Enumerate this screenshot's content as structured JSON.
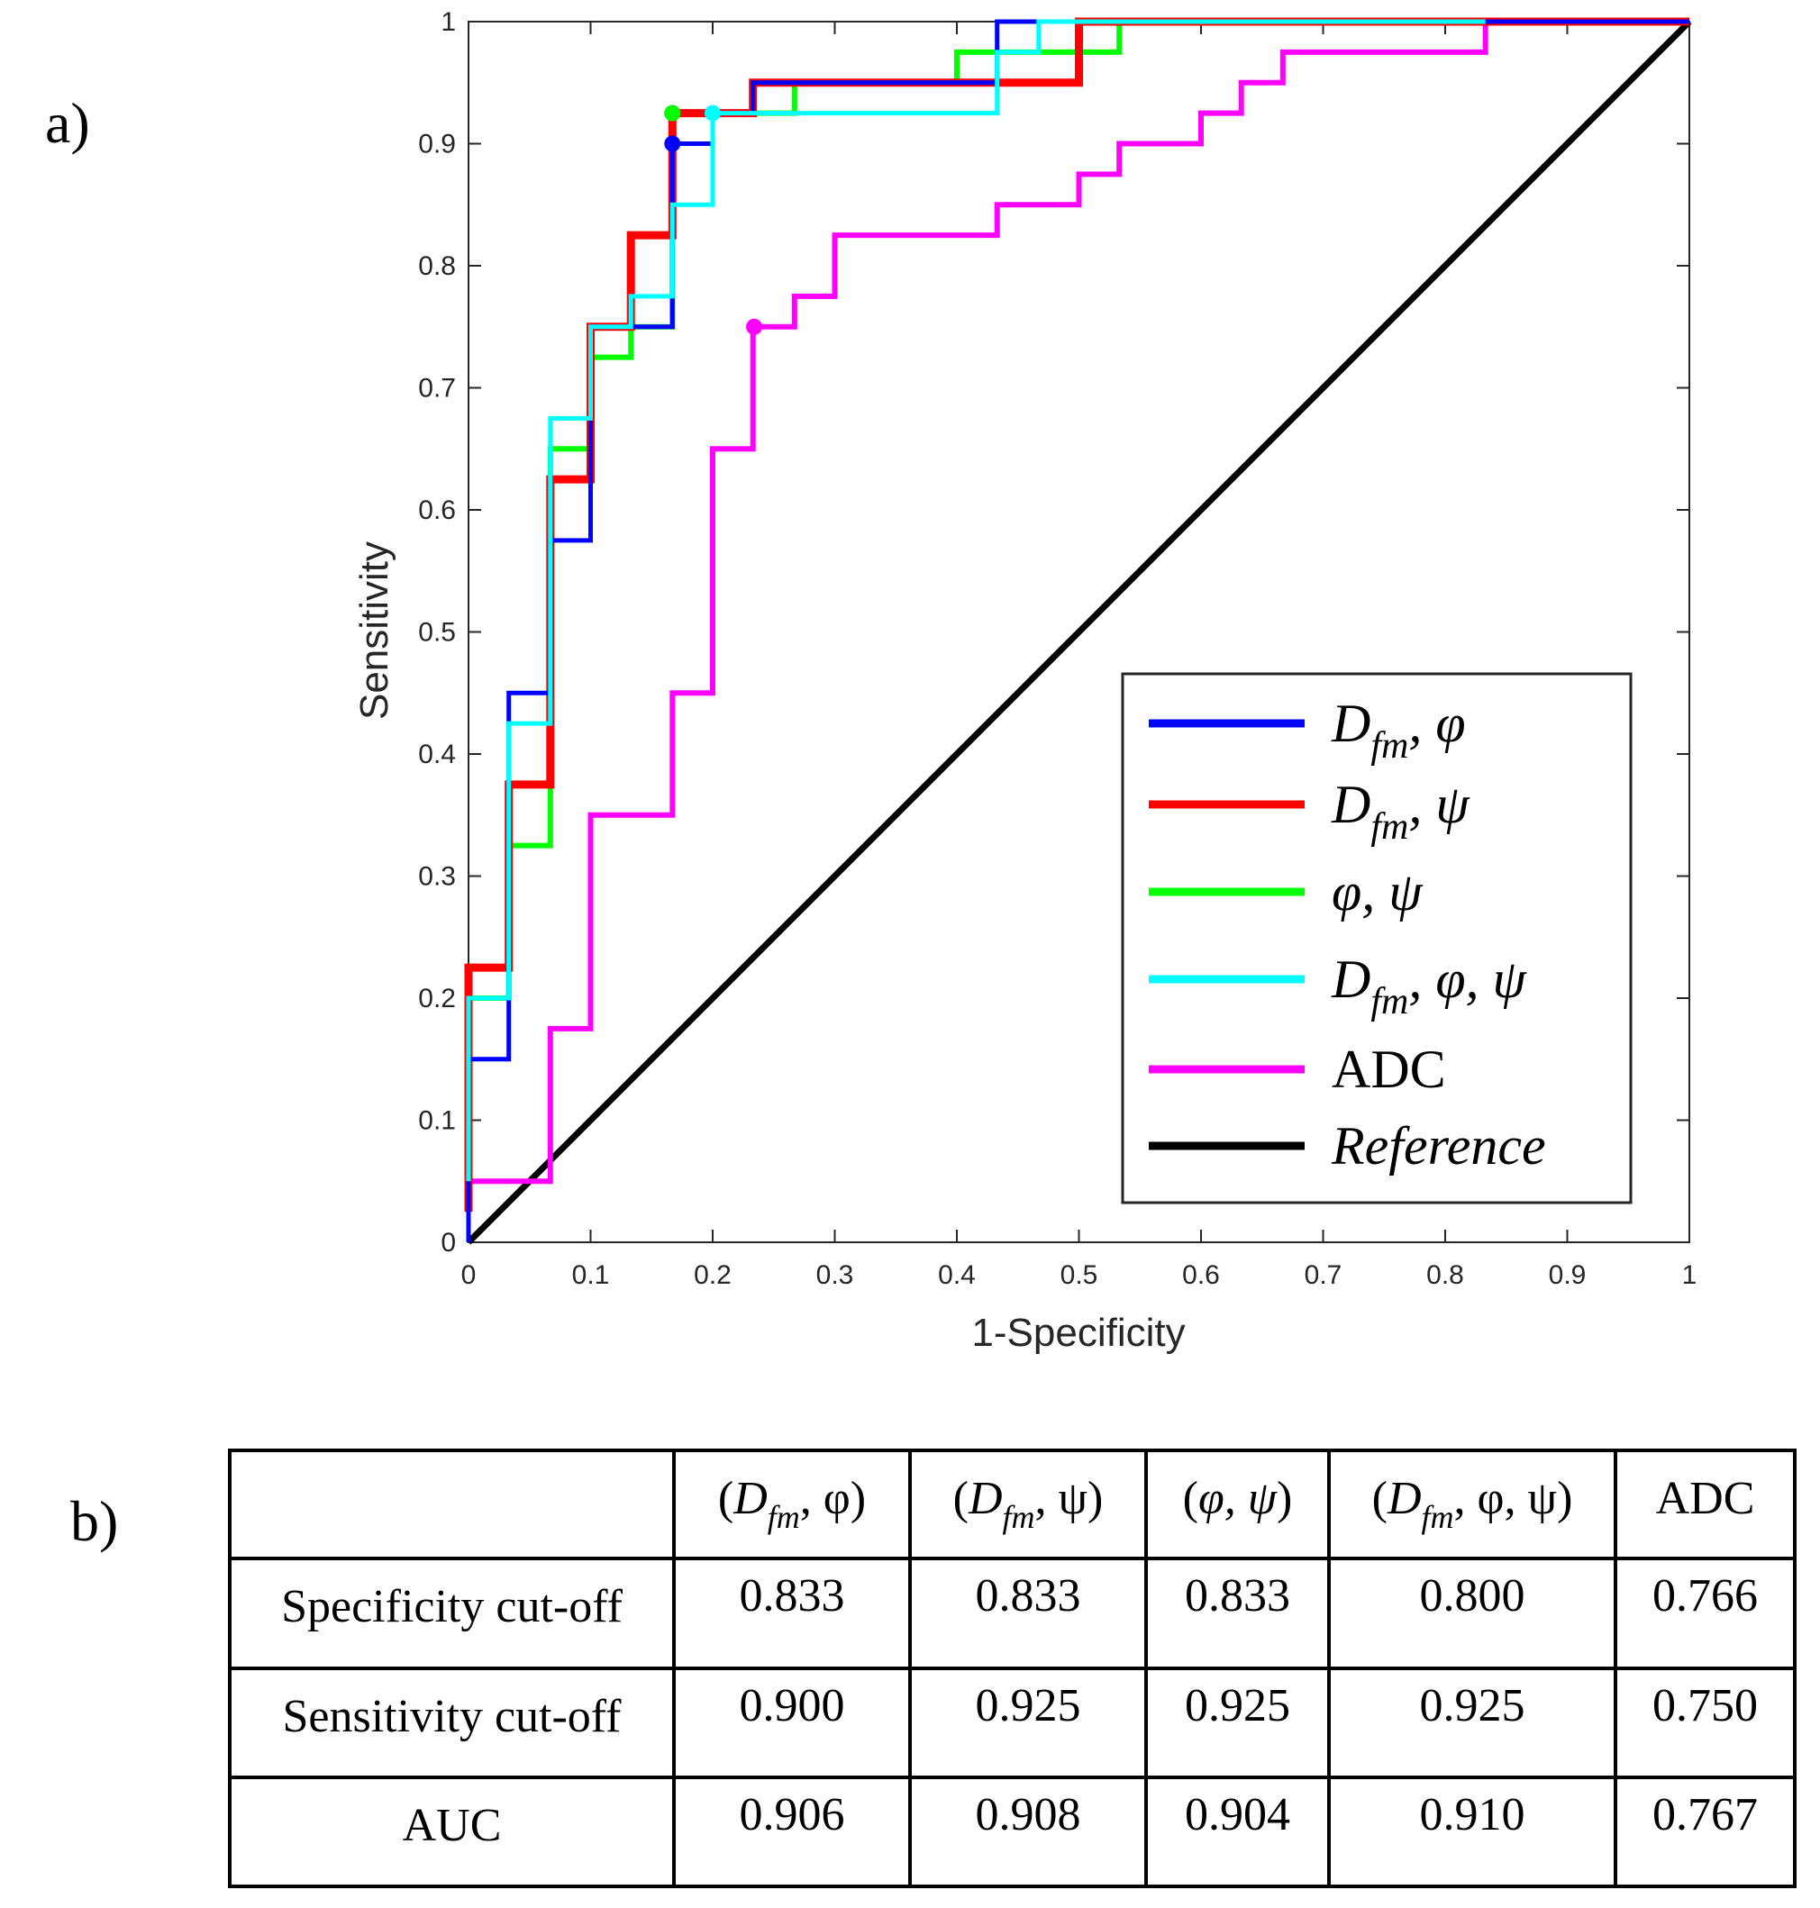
{
  "panel_a_label": "a)",
  "panel_b_label": "b)",
  "chart_data": {
    "type": "line",
    "title": "",
    "xlabel": "1-Specificity",
    "ylabel": "Sensitivity",
    "xlim": [
      0,
      1
    ],
    "ylim": [
      0,
      1
    ],
    "xticks": [
      "0",
      "0.1",
      "0.2",
      "0.3",
      "0.4",
      "0.5",
      "0.6",
      "0.7",
      "0.8",
      "0.9",
      "1"
    ],
    "yticks": [
      "0",
      "0.1",
      "0.2",
      "0.3",
      "0.4",
      "0.5",
      "0.6",
      "0.7",
      "0.8",
      "0.9",
      "1"
    ],
    "legend_position": "bottom-right",
    "series": [
      {
        "name": "Dfm, φ",
        "color": "#0000ff",
        "x": [
          0,
          0,
          0.033,
          0.033,
          0.067,
          0.067,
          0.1,
          0.1,
          0.167,
          0.167,
          0.2,
          0.2,
          0.233,
          0.233,
          0.433,
          0.433,
          1
        ],
        "y": [
          0,
          0.15,
          0.15,
          0.45,
          0.45,
          0.575,
          0.575,
          0.75,
          0.75,
          0.9,
          0.9,
          0.925,
          0.925,
          0.95,
          0.95,
          1,
          1
        ],
        "cutoff": [
          0.167,
          0.9
        ]
      },
      {
        "name": "Dfm, ψ",
        "color": "#ff0000",
        "x": [
          0,
          0,
          0.033,
          0.033,
          0.067,
          0.067,
          0.1,
          0.1,
          0.133,
          0.133,
          0.167,
          0.167,
          0.233,
          0.233,
          0.5,
          0.5,
          1
        ],
        "y": [
          0.025,
          0.225,
          0.225,
          0.375,
          0.375,
          0.625,
          0.625,
          0.75,
          0.75,
          0.825,
          0.825,
          0.925,
          0.925,
          0.95,
          0.95,
          1,
          1
        ],
        "cutoff": [
          0.167,
          0.925
        ]
      },
      {
        "name": "φ, ψ",
        "color": "#00ff00",
        "x": [
          0,
          0,
          0.033,
          0.033,
          0.067,
          0.067,
          0.1,
          0.1,
          0.133,
          0.133,
          0.167,
          0.167,
          0.267,
          0.267,
          0.4,
          0.4,
          0.533,
          0.533,
          1
        ],
        "y": [
          0.05,
          0.2,
          0.2,
          0.325,
          0.325,
          0.65,
          0.65,
          0.725,
          0.725,
          0.75,
          0.75,
          0.925,
          0.925,
          0.95,
          0.95,
          0.975,
          0.975,
          1,
          1
        ],
        "cutoff": [
          0.167,
          0.925
        ]
      },
      {
        "name": "Dfm, φ, ψ",
        "color": "#00ffff",
        "x": [
          0,
          0,
          0.033,
          0.033,
          0.067,
          0.067,
          0.1,
          0.1,
          0.133,
          0.133,
          0.167,
          0.167,
          0.2,
          0.2,
          0.433,
          0.433,
          0.467,
          0.467,
          0.833
        ],
        "y": [
          0.05,
          0.2,
          0.2,
          0.425,
          0.425,
          0.675,
          0.675,
          0.75,
          0.75,
          0.775,
          0.775,
          0.85,
          0.85,
          0.925,
          0.925,
          0.975,
          0.975,
          1,
          1
        ],
        "cutoff": [
          0.2,
          0.925
        ]
      },
      {
        "name": "ADC",
        "color": "#ff00ff",
        "x": [
          0,
          0,
          0.067,
          0.067,
          0.1,
          0.1,
          0.167,
          0.167,
          0.2,
          0.2,
          0.233,
          0.233,
          0.267,
          0.267,
          0.3,
          0.3,
          0.433,
          0.433,
          0.5,
          0.5,
          0.533,
          0.533,
          0.6,
          0.6,
          0.633,
          0.633,
          0.667,
          0.667,
          0.833,
          0.833,
          1
        ],
        "y": [
          0.025,
          0.05,
          0.05,
          0.175,
          0.175,
          0.35,
          0.35,
          0.45,
          0.45,
          0.65,
          0.65,
          0.75,
          0.75,
          0.775,
          0.775,
          0.825,
          0.825,
          0.85,
          0.85,
          0.875,
          0.875,
          0.9,
          0.9,
          0.925,
          0.925,
          0.95,
          0.95,
          0.975,
          0.975,
          1,
          1
        ],
        "cutoff": [
          0.234,
          0.75
        ]
      },
      {
        "name": "Reference",
        "color": "#000000",
        "x": [
          0,
          1
        ],
        "y": [
          0,
          1
        ]
      }
    ]
  },
  "legend": [
    {
      "main": "D",
      "sub": "fm",
      "rest": ", φ",
      "color": "#0000ff"
    },
    {
      "main": "D",
      "sub": "fm",
      "rest": ", ψ",
      "color": "#ff0000"
    },
    {
      "main": "",
      "sub": "",
      "rest": "φ, ψ",
      "color": "#00ff00"
    },
    {
      "main": "D",
      "sub": "fm",
      "rest": ", φ, ψ",
      "color": "#00ffff"
    },
    {
      "main": "ADC",
      "sub": "",
      "rest": "",
      "color": "#ff00ff",
      "upright": true
    },
    {
      "main": "Reference",
      "sub": "",
      "rest": "",
      "color": "#000000"
    }
  ],
  "table": {
    "headers": [
      {
        "pre": "",
        "main": "",
        "sub": "",
        "rest": ""
      },
      {
        "pre": "(",
        "main": "D",
        "sub": "fm",
        "rest": ", φ)"
      },
      {
        "pre": "(",
        "main": "D",
        "sub": "fm",
        "rest": ", ψ)"
      },
      {
        "pre": "(",
        "main": "φ, ψ",
        "sub": "",
        "rest": ")"
      },
      {
        "pre": "(",
        "main": "D",
        "sub": "fm",
        "rest": ", φ, ψ)"
      },
      {
        "pre": "",
        "main": "ADC",
        "sub": "",
        "rest": "",
        "upright": true
      }
    ],
    "rows": [
      {
        "label": "Specificity cut-off",
        "values": [
          "0.833",
          "0.833",
          "0.833",
          "0.800",
          "0.766"
        ]
      },
      {
        "label": "Sensitivity cut-off",
        "values": [
          "0.900",
          "0.925",
          "0.925",
          "0.925",
          "0.750"
        ]
      },
      {
        "label": "AUC",
        "values": [
          "0.906",
          "0.908",
          "0.904",
          "0.910",
          "0.767"
        ]
      }
    ]
  }
}
